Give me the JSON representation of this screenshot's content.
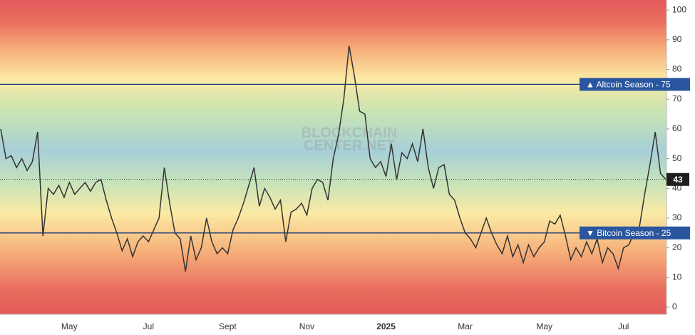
{
  "chart_data": {
    "type": "line",
    "watermark": [
      "BLOCKCHAIN",
      "CENTER.NET"
    ],
    "categories": [
      null,
      null,
      null,
      null,
      null,
      null,
      null,
      null,
      null,
      null,
      null,
      null,
      null,
      "May",
      null,
      null,
      null,
      null,
      null,
      null,
      null,
      null,
      null,
      null,
      null,
      null,
      null,
      null,
      "Jul",
      null,
      null,
      null,
      null,
      null,
      null,
      null,
      null,
      null,
      null,
      null,
      null,
      null,
      null,
      "Sept",
      null,
      null,
      null,
      null,
      null,
      null,
      null,
      null,
      null,
      null,
      null,
      null,
      null,
      null,
      "Nov",
      null,
      null,
      null,
      null,
      null,
      null,
      null,
      null,
      null,
      null,
      null,
      null,
      null,
      null,
      "2025",
      null,
      null,
      null,
      null,
      null,
      null,
      null,
      null,
      null,
      null,
      null,
      null,
      null,
      null,
      "Mar",
      null,
      null,
      null,
      null,
      null,
      null,
      null,
      null,
      null,
      null,
      null,
      null,
      null,
      null,
      "May",
      null,
      null,
      null,
      null,
      null,
      null,
      null,
      null,
      null,
      null,
      null,
      null,
      null,
      null,
      "Jul",
      null,
      null,
      null,
      null,
      null,
      null,
      null,
      null
    ],
    "series": [
      {
        "color": "#333333",
        "values": [
          60,
          50,
          51,
          47,
          50,
          46,
          49,
          59,
          24,
          40,
          38,
          41,
          37,
          42,
          38,
          40,
          42,
          39,
          42,
          43,
          36,
          30,
          25,
          19,
          23,
          17,
          22,
          24,
          22,
          26,
          30,
          47,
          35,
          25,
          23,
          12,
          24,
          16,
          20,
          30,
          22,
          18,
          20,
          18,
          26,
          30,
          35,
          41,
          47,
          34,
          40,
          37,
          33,
          36,
          22,
          32,
          33,
          35,
          31,
          40,
          43,
          42,
          36,
          50,
          58,
          70,
          88,
          78,
          66,
          65,
          50,
          47,
          49,
          44,
          55,
          43,
          52,
          50,
          55,
          49,
          60,
          47,
          40,
          47,
          48,
          38,
          36,
          30,
          25,
          23,
          20,
          25,
          30,
          25,
          21,
          18,
          24,
          17,
          21,
          15,
          21,
          17,
          20,
          22,
          29,
          28,
          31,
          24,
          16,
          20,
          17,
          22,
          18,
          23,
          15,
          20,
          18,
          13,
          20,
          21,
          25,
          27,
          38,
          48,
          59,
          45,
          43
        ]
      }
    ],
    "reference_lines": [
      {
        "label": "▲ Altcoin Season - 75",
        "value": 75,
        "color": "#1f3c78"
      },
      {
        "label": "▼ Bitcoin Season - 25",
        "value": 25,
        "color": "#1f3c78"
      }
    ],
    "ylim": [
      -2.4,
      103.4
    ],
    "yticks": [
      0,
      10,
      20,
      30,
      40,
      50,
      60,
      70,
      80,
      90,
      100
    ]
  }
}
